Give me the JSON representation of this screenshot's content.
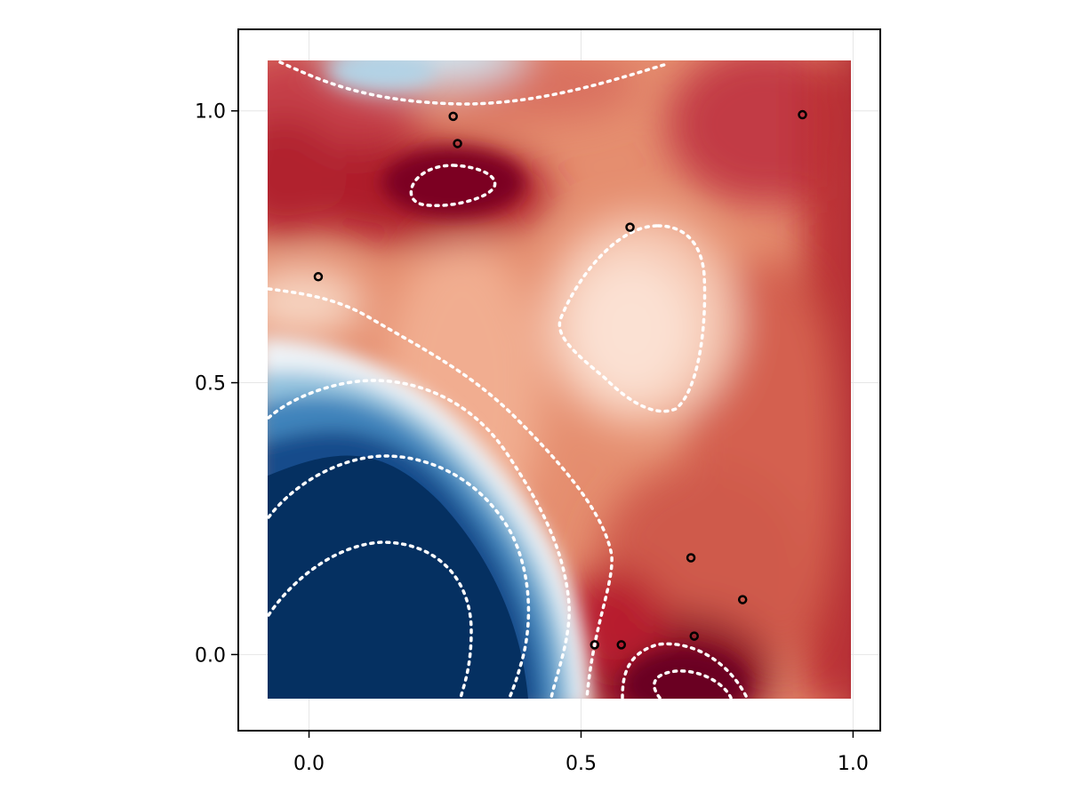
{
  "chart_data": {
    "type": "heatmap",
    "title": "",
    "xlabel": "",
    "ylabel": "",
    "xlim": [
      -0.13,
      1.05
    ],
    "ylim": [
      -0.14,
      1.15
    ],
    "grid": true,
    "colormap": "RdBu",
    "colors": {
      "high": "#67001f",
      "mid": "#f7f7f7",
      "low": "#053061"
    },
    "field_extent": {
      "x": [
        -0.075,
        1.0
      ],
      "y": [
        -0.08,
        1.1
      ]
    },
    "x_ticks": [
      {
        "value": 0.0,
        "label": "0.0"
      },
      {
        "value": 0.5,
        "label": "0.5"
      },
      {
        "value": 1.0,
        "label": "1.0"
      }
    ],
    "y_ticks": [
      {
        "value": 0.0,
        "label": "0.0"
      },
      {
        "value": 0.5,
        "label": "0.5"
      },
      {
        "value": 1.0,
        "label": "1.0"
      }
    ],
    "contour_style": "dotted-white",
    "points": [
      {
        "x": 0.265,
        "y": 0.99
      },
      {
        "x": 0.273,
        "y": 0.94
      },
      {
        "x": 0.907,
        "y": 0.993
      },
      {
        "x": 0.59,
        "y": 0.786
      },
      {
        "x": 0.017,
        "y": 0.695
      },
      {
        "x": 0.702,
        "y": 0.178
      },
      {
        "x": 0.797,
        "y": 0.101
      },
      {
        "x": 0.525,
        "y": 0.018
      },
      {
        "x": 0.574,
        "y": 0.018
      },
      {
        "x": 0.708,
        "y": 0.034
      }
    ]
  }
}
